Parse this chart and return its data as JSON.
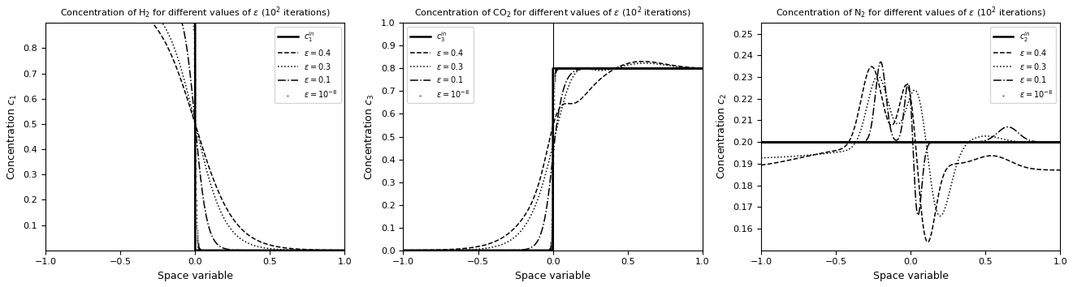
{
  "fig_width": 13.21,
  "fig_height": 3.54,
  "dpi": 100,
  "plots": [
    {
      "title": "Concentration of H$_2$ for different values of $\\varepsilon$ (10$^2$ iterations)",
      "ylabel": "Concentration $c_1$",
      "xlabel": "Space variable",
      "xlim": [
        -1,
        1
      ],
      "ylim": [
        0.0,
        0.9
      ],
      "legend_loc": "upper right",
      "legend_label_ref": "$c_1^{in}$",
      "yticks": [
        0.1,
        0.2,
        0.3,
        0.4,
        0.5,
        0.6,
        0.7,
        0.8
      ]
    },
    {
      "title": "Concentration of CO$_2$ for different values of $\\varepsilon$ (10$^2$ iterations)",
      "ylabel": "Concentration $c_3$",
      "xlabel": "Space variable",
      "xlim": [
        -1,
        1
      ],
      "ylim": [
        0.0,
        1.0
      ],
      "legend_loc": "upper left",
      "legend_label_ref": "$c_3^{in}$",
      "yticks": [
        0.0,
        0.1,
        0.2,
        0.3,
        0.4,
        0.5,
        0.6,
        0.7,
        0.8,
        0.9,
        1.0
      ]
    },
    {
      "title": "Concentration of N$_2$ for different values of $\\varepsilon$ (10$^2$ iterations)",
      "ylabel": "Concentration $c_2$",
      "xlabel": "Space variable",
      "xlim": [
        -1,
        1
      ],
      "ylim": [
        0.15,
        0.255
      ],
      "legend_loc": "upper right",
      "legend_label_ref": "$c_2^{in}$",
      "yticks": [
        0.16,
        0.17,
        0.18,
        0.19,
        0.2,
        0.21,
        0.22,
        0.23,
        0.24,
        0.25
      ]
    }
  ],
  "ref_lw": 1.8,
  "lw": 1.1
}
